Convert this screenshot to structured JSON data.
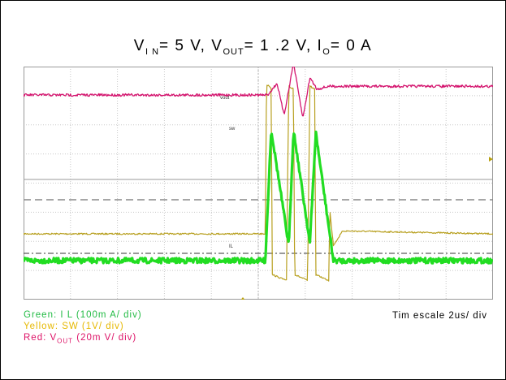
{
  "title": {
    "vin_sym": "V",
    "vin_sub": "I N",
    "vin_val": "= 5 V,",
    "vout_sym": "V",
    "vout_sub": "OUT",
    "vout_val": "= 1 .2 V,",
    "io_sym": "I",
    "io_sub": "O",
    "io_val": "= 0 A"
  },
  "legend": {
    "green": "Green: I L (100m A/ div)",
    "yellow": "Yellow: SW (1V/ div)",
    "red_prefix": "Red: V",
    "red_sub": "OUT",
    "red_suffix": " (20m V/ div)"
  },
  "timescale": "Tim escale 2us/ div",
  "channel_tags": {
    "vout": "vout",
    "sw": "sw",
    "il": "IL"
  },
  "colors": {
    "green": "#22dd22",
    "yellow": "#b8a020",
    "red": "#d4146e",
    "grid": "#c8c8c8",
    "ref": "#888888",
    "marker": "#b8a010"
  },
  "chart_data": {
    "type": "line",
    "title": "V IN= 5V, VOUT= 1.2V, I O= 0A",
    "xlabel": "Tim escale 2us/ div",
    "ylabel": "",
    "grid": true,
    "x_divisions": 10,
    "y_divisions": 8,
    "xlim": [
      0,
      20
    ],
    "series": [
      {
        "name": "Red: VOUT (20m V/ div)",
        "unit": "mV",
        "x": [
          0,
          10.4,
          10.8,
          11.1,
          11.5,
          11.9,
          12.2,
          12.5,
          13,
          14,
          20
        ],
        "y": [
          0,
          0,
          8,
          -14,
          22,
          -16,
          12,
          4,
          6,
          6,
          6
        ]
      },
      {
        "name": "Yellow: SW (1V/ div)",
        "unit": "V",
        "x": [
          0,
          10.3,
          10.35,
          10.45,
          10.55,
          10.6,
          11.2,
          11.3,
          11.4,
          11.5,
          11.55,
          12.1,
          12.2,
          12.3,
          12.4,
          12.45,
          13.0,
          13.05,
          13.2,
          13.6,
          20
        ],
        "y": [
          0,
          0,
          5.1,
          5.1,
          5.0,
          -1.4,
          -1.6,
          5.1,
          5.0,
          5.0,
          -1.4,
          -1.6,
          5.1,
          5.0,
          5.0,
          -1.4,
          -1.6,
          0.8,
          -0.4,
          0.1,
          0
        ]
      },
      {
        "name": "Green: I L (100m A/ div)",
        "unit": "mA",
        "x": [
          0,
          10.3,
          10.55,
          11.3,
          11.5,
          12.2,
          12.45,
          13.2,
          20
        ],
        "y": [
          0,
          0,
          450,
          50,
          450,
          60,
          440,
          0,
          0
        ]
      }
    ]
  }
}
